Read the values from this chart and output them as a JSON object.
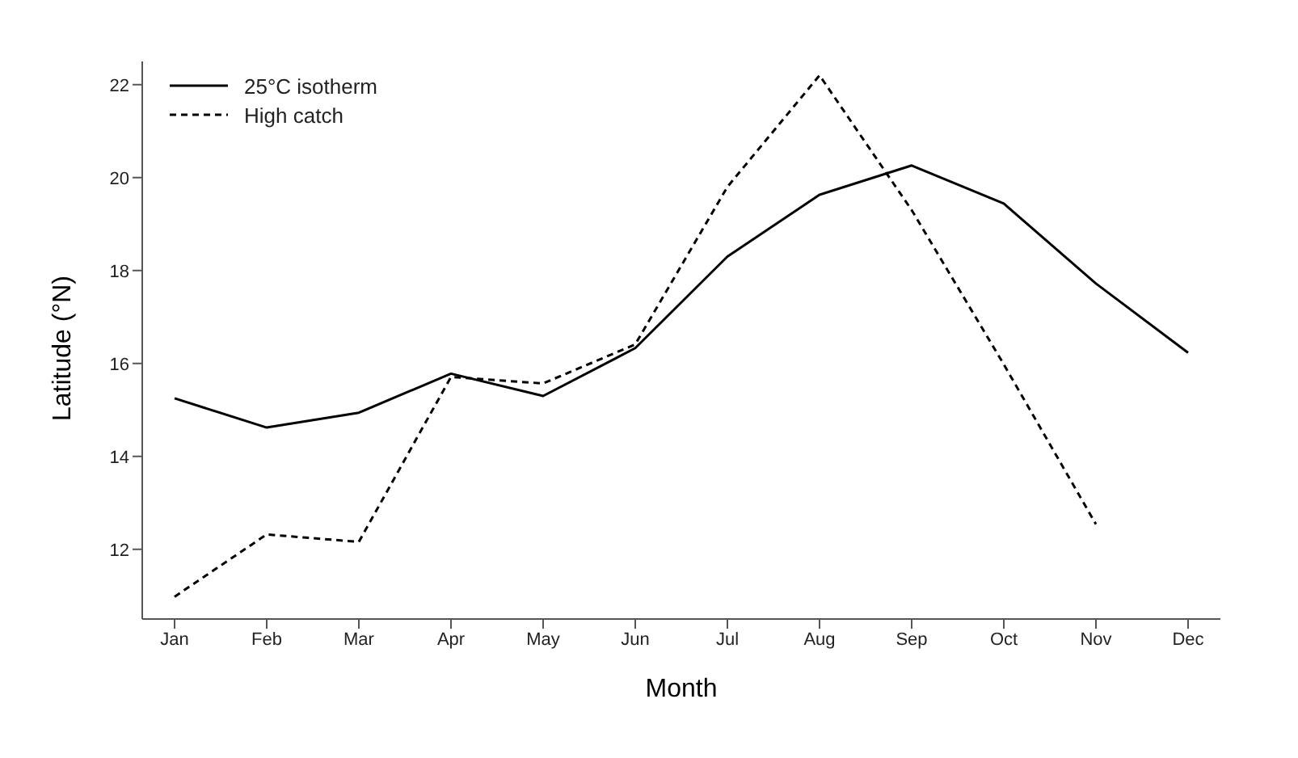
{
  "chart_data": {
    "type": "line",
    "xlabel": "Month",
    "ylabel": "Latitude (°N)",
    "categories": [
      "Jan",
      "Feb",
      "Mar",
      "Apr",
      "May",
      "Jun",
      "Jul",
      "Aug",
      "Sep",
      "Oct",
      "Nov",
      "Dec"
    ],
    "series": [
      {
        "name": "25°C isotherm",
        "color": "#000000",
        "line_style": "solid",
        "values": [
          15.25,
          14.62,
          14.94,
          15.78,
          15.3,
          16.33,
          18.3,
          19.63,
          20.26,
          19.44,
          17.72,
          16.23
        ]
      },
      {
        "name": "High catch",
        "color": "#000000",
        "line_style": "dashed",
        "values": [
          10.98,
          12.32,
          12.16,
          15.71,
          15.57,
          16.41,
          19.8,
          22.2,
          19.3,
          15.98,
          12.54,
          null
        ]
      }
    ],
    "ylim": [
      10.5,
      22.5
    ],
    "yticks": [
      12,
      14,
      16,
      18,
      20,
      22
    ],
    "grid": false,
    "legend": "top left",
    "marker": "none"
  }
}
